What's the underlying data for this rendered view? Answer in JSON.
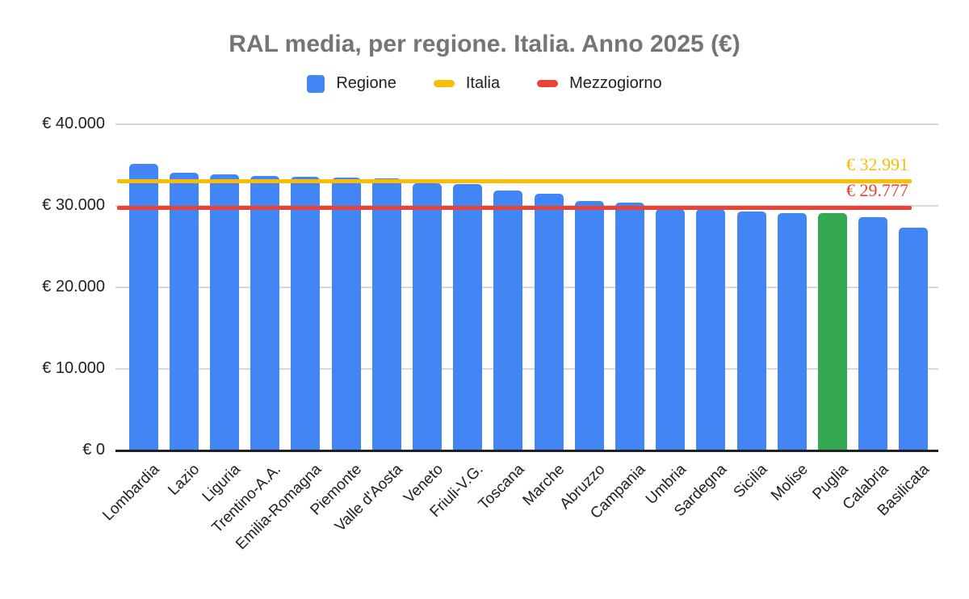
{
  "chart_data": {
    "type": "bar",
    "title": "RAL media, per regione. Italia. Anno 2025 (€)",
    "xlabel": "",
    "ylabel": "",
    "ylim": [
      0,
      40000
    ],
    "grid": true,
    "legend_position": "top",
    "categories": [
      "Lombardia",
      "Lazio",
      "Liguria",
      "Trentino-A.A.",
      "Emilia-Romagna",
      "Piemonte",
      "Valle d'Aosta",
      "Veneto",
      "Friuli-V.G.",
      "Toscana",
      "Marche",
      "Abruzzo",
      "Campania",
      "Umbria",
      "Sardegna",
      "Sicilia",
      "Molise",
      "Puglia",
      "Calabria",
      "Basilicata"
    ],
    "series": [
      {
        "name": "Regione",
        "color": "#4285F4",
        "values": [
          35100,
          34050,
          33900,
          33700,
          33550,
          33500,
          33350,
          32800,
          32650,
          31900,
          31500,
          30600,
          30350,
          29650,
          29600,
          29350,
          29150,
          29100,
          28650,
          27300
        ]
      }
    ],
    "highlight": {
      "category": "Puglia",
      "color": "#34A853"
    },
    "reference_lines": [
      {
        "name": "Italia",
        "value": 32991,
        "annotation": "€ 32.991",
        "color": "#FBBC04"
      },
      {
        "name": "Mezzogiorno",
        "value": 29777,
        "annotation": "€ 29.777",
        "color": "#EA4335"
      }
    ],
    "y_ticks": [
      {
        "value": 0,
        "label": "€ 0"
      },
      {
        "value": 10000,
        "label": "€ 10.000"
      },
      {
        "value": 20000,
        "label": "€ 20.000"
      },
      {
        "value": 30000,
        "label": "€ 30.000"
      },
      {
        "value": 40000,
        "label": "€ 40.000"
      }
    ]
  },
  "legend": {
    "items": [
      {
        "label": "Regione",
        "color": "#4285F4",
        "shape": "square"
      },
      {
        "label": "Italia",
        "color": "#FBBC04",
        "shape": "line"
      },
      {
        "label": "Mezzogiorno",
        "color": "#EA4335",
        "shape": "line"
      }
    ]
  },
  "colors": {
    "background": "#ffffff",
    "title_text": "#757575",
    "axis_text": "#212121",
    "gridline": "#d9d9d9",
    "baseline": "#212121",
    "bar_default": "#4285F4",
    "bar_highlight": "#34A853",
    "line_italia": "#FBBC04",
    "line_mezzogiorno": "#EA4335"
  }
}
